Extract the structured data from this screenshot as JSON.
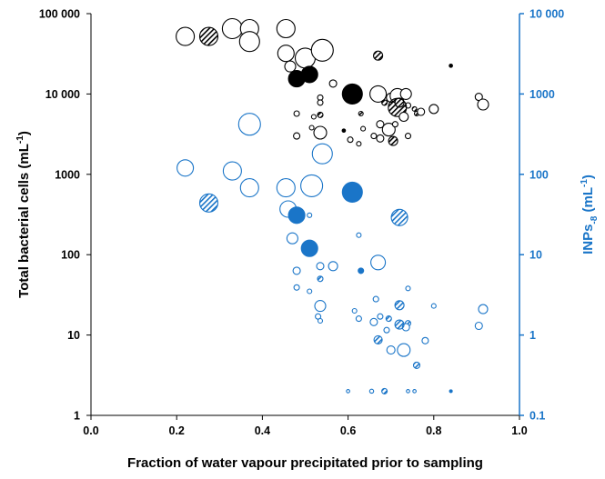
{
  "chart_data": {
    "type": "scatter",
    "title": "",
    "xlabel": "Fraction of water vapour precipitated prior to sampling",
    "ylabel_left": {
      "text": "Total bacterial cells (mL",
      "sup": "-1",
      "end": ")"
    },
    "ylabel_right": {
      "text": "INPs",
      "sub": "-8",
      "mid": " (mL",
      "sup": "-1",
      "end": ")"
    },
    "xlim": [
      0,
      1
    ],
    "ylim_left": [
      1,
      100000
    ],
    "ylim_right": [
      0.1,
      10000
    ],
    "yscale": "log",
    "x_ticks": [
      "0.0",
      "0.2",
      "0.4",
      "0.6",
      "0.8",
      "1.0"
    ],
    "y_left_ticks": [
      "1",
      "10",
      "100",
      "1000",
      "10 000",
      "100 000"
    ],
    "y_right_ticks": [
      "0.1",
      "1",
      "10",
      "100",
      "1000",
      "10 000"
    ],
    "grid": false,
    "legend": "none",
    "colors": {
      "left_series": "#000000",
      "right_series": "#1a75c8",
      "axis_right": "#1a75c8"
    },
    "marker_style_note": "open = outline, filled = solid, hatched = diagonal stripes; marker size varies",
    "series": [
      {
        "axis": "left",
        "color": "#000000",
        "points": [
          {
            "x": 0.22,
            "y": 52000,
            "size": 10,
            "style": "open"
          },
          {
            "x": 0.275,
            "y": 52000,
            "size": 10,
            "style": "hatched"
          },
          {
            "x": 0.33,
            "y": 65000,
            "size": 11,
            "style": "open"
          },
          {
            "x": 0.37,
            "y": 65000,
            "size": 10,
            "style": "open"
          },
          {
            "x": 0.37,
            "y": 45000,
            "size": 11,
            "style": "open"
          },
          {
            "x": 0.455,
            "y": 65000,
            "size": 10,
            "style": "open"
          },
          {
            "x": 0.455,
            "y": 32000,
            "size": 9,
            "style": "open"
          },
          {
            "x": 0.465,
            "y": 22000,
            "size": 6,
            "style": "open"
          },
          {
            "x": 0.5,
            "y": 28000,
            "size": 11,
            "style": "open"
          },
          {
            "x": 0.54,
            "y": 35000,
            "size": 12,
            "style": "open"
          },
          {
            "x": 0.48,
            "y": 15500,
            "size": 9,
            "style": "filled"
          },
          {
            "x": 0.51,
            "y": 17500,
            "size": 9,
            "style": "filled"
          },
          {
            "x": 0.61,
            "y": 10000,
            "size": 11,
            "style": "filled"
          },
          {
            "x": 0.565,
            "y": 13500,
            "size": 4,
            "style": "open"
          },
          {
            "x": 0.67,
            "y": 30000,
            "size": 5,
            "style": "hatched"
          },
          {
            "x": 0.84,
            "y": 22500,
            "size": 1.8,
            "style": "filled"
          },
          {
            "x": 0.535,
            "y": 9000,
            "size": 3,
            "style": "open"
          },
          {
            "x": 0.535,
            "y": 7800,
            "size": 3,
            "style": "open"
          },
          {
            "x": 0.535,
            "y": 5500,
            "size": 3,
            "style": "hatched"
          },
          {
            "x": 0.52,
            "y": 5200,
            "size": 2.5,
            "style": "open"
          },
          {
            "x": 0.48,
            "y": 5700,
            "size": 3,
            "style": "open"
          },
          {
            "x": 0.515,
            "y": 3800,
            "size": 2.5,
            "style": "open"
          },
          {
            "x": 0.535,
            "y": 3300,
            "size": 7,
            "style": "open"
          },
          {
            "x": 0.48,
            "y": 3000,
            "size": 3.5,
            "style": "open"
          },
          {
            "x": 0.59,
            "y": 3500,
            "size": 1.8,
            "style": "filled"
          },
          {
            "x": 0.605,
            "y": 2700,
            "size": 3,
            "style": "open"
          },
          {
            "x": 0.625,
            "y": 2400,
            "size": 2.5,
            "style": "open"
          },
          {
            "x": 0.63,
            "y": 5700,
            "size": 2.5,
            "style": "hatched"
          },
          {
            "x": 0.635,
            "y": 3700,
            "size": 2.5,
            "style": "open"
          },
          {
            "x": 0.67,
            "y": 10000,
            "size": 9,
            "style": "open"
          },
          {
            "x": 0.685,
            "y": 7800,
            "size": 3,
            "style": "hatched"
          },
          {
            "x": 0.7,
            "y": 9000,
            "size": 5,
            "style": "open"
          },
          {
            "x": 0.715,
            "y": 9500,
            "size": 8,
            "style": "open"
          },
          {
            "x": 0.735,
            "y": 10000,
            "size": 6,
            "style": "open"
          },
          {
            "x": 0.72,
            "y": 7800,
            "size": 5,
            "style": "open"
          },
          {
            "x": 0.74,
            "y": 7200,
            "size": 3,
            "style": "open"
          },
          {
            "x": 0.715,
            "y": 6800,
            "size": 10,
            "style": "hatched"
          },
          {
            "x": 0.73,
            "y": 5200,
            "size": 5,
            "style": "open"
          },
          {
            "x": 0.675,
            "y": 4200,
            "size": 4,
            "style": "open"
          },
          {
            "x": 0.695,
            "y": 3600,
            "size": 7,
            "style": "open"
          },
          {
            "x": 0.71,
            "y": 4200,
            "size": 3,
            "style": "open"
          },
          {
            "x": 0.66,
            "y": 3000,
            "size": 3,
            "style": "open"
          },
          {
            "x": 0.675,
            "y": 2800,
            "size": 4,
            "style": "open"
          },
          {
            "x": 0.705,
            "y": 2600,
            "size": 5,
            "style": "hatched"
          },
          {
            "x": 0.74,
            "y": 3000,
            "size": 3,
            "style": "open"
          },
          {
            "x": 0.76,
            "y": 5700,
            "size": 2.5,
            "style": "hatched"
          },
          {
            "x": 0.77,
            "y": 6000,
            "size": 4,
            "style": "open"
          },
          {
            "x": 0.755,
            "y": 6500,
            "size": 2.5,
            "style": "hatched"
          },
          {
            "x": 0.8,
            "y": 6500,
            "size": 5,
            "style": "open"
          },
          {
            "x": 0.905,
            "y": 9200,
            "size": 4,
            "style": "open"
          },
          {
            "x": 0.915,
            "y": 7400,
            "size": 6,
            "style": "open"
          }
        ]
      },
      {
        "axis": "right",
        "color": "#1a75c8",
        "points": [
          {
            "x": 0.22,
            "y": 120,
            "size": 9,
            "style": "open"
          },
          {
            "x": 0.275,
            "y": 44,
            "size": 10,
            "style": "hatched"
          },
          {
            "x": 0.33,
            "y": 110,
            "size": 10,
            "style": "open"
          },
          {
            "x": 0.37,
            "y": 420,
            "size": 12,
            "style": "open"
          },
          {
            "x": 0.37,
            "y": 68,
            "size": 10,
            "style": "open"
          },
          {
            "x": 0.455,
            "y": 68,
            "size": 10,
            "style": "open"
          },
          {
            "x": 0.46,
            "y": 37,
            "size": 9,
            "style": "open"
          },
          {
            "x": 0.515,
            "y": 72,
            "size": 12,
            "style": "open"
          },
          {
            "x": 0.54,
            "y": 180,
            "size": 11,
            "style": "open"
          },
          {
            "x": 0.48,
            "y": 31,
            "size": 9,
            "style": "filled"
          },
          {
            "x": 0.51,
            "y": 12,
            "size": 9,
            "style": "filled"
          },
          {
            "x": 0.61,
            "y": 60,
            "size": 11,
            "style": "filled"
          },
          {
            "x": 0.51,
            "y": 31,
            "size": 2.5,
            "style": "open"
          },
          {
            "x": 0.47,
            "y": 16,
            "size": 6,
            "style": "open"
          },
          {
            "x": 0.535,
            "y": 7.2,
            "size": 4,
            "style": "open"
          },
          {
            "x": 0.565,
            "y": 7.2,
            "size": 5,
            "style": "open"
          },
          {
            "x": 0.535,
            "y": 5.0,
            "size": 3,
            "style": "hatched"
          },
          {
            "x": 0.48,
            "y": 6.3,
            "size": 4,
            "style": "open"
          },
          {
            "x": 0.48,
            "y": 3.9,
            "size": 3,
            "style": "open"
          },
          {
            "x": 0.51,
            "y": 3.5,
            "size": 2.5,
            "style": "open"
          },
          {
            "x": 0.535,
            "y": 2.3,
            "size": 6,
            "style": "open"
          },
          {
            "x": 0.53,
            "y": 1.7,
            "size": 3,
            "style": "open"
          },
          {
            "x": 0.535,
            "y": 1.5,
            "size": 2.5,
            "style": "open"
          },
          {
            "x": 0.625,
            "y": 17.5,
            "size": 2.5,
            "style": "open"
          },
          {
            "x": 0.63,
            "y": 6.3,
            "size": 3,
            "style": "filled"
          },
          {
            "x": 0.67,
            "y": 8.0,
            "size": 8,
            "style": "open"
          },
          {
            "x": 0.72,
            "y": 29,
            "size": 9,
            "style": "hatched"
          },
          {
            "x": 0.615,
            "y": 2.0,
            "size": 2.5,
            "style": "open"
          },
          {
            "x": 0.625,
            "y": 1.6,
            "size": 3,
            "style": "open"
          },
          {
            "x": 0.665,
            "y": 2.8,
            "size": 3,
            "style": "open"
          },
          {
            "x": 0.675,
            "y": 1.7,
            "size": 3,
            "style": "open"
          },
          {
            "x": 0.66,
            "y": 1.45,
            "size": 4,
            "style": "open"
          },
          {
            "x": 0.67,
            "y": 0.87,
            "size": 4.5,
            "style": "hatched"
          },
          {
            "x": 0.695,
            "y": 1.6,
            "size": 3,
            "style": "hatched"
          },
          {
            "x": 0.69,
            "y": 1.15,
            "size": 3,
            "style": "open"
          },
          {
            "x": 0.7,
            "y": 0.65,
            "size": 4.5,
            "style": "open"
          },
          {
            "x": 0.72,
            "y": 2.35,
            "size": 5,
            "style": "hatched"
          },
          {
            "x": 0.74,
            "y": 3.8,
            "size": 2.5,
            "style": "open"
          },
          {
            "x": 0.74,
            "y": 1.4,
            "size": 3,
            "style": "hatched"
          },
          {
            "x": 0.735,
            "y": 1.25,
            "size": 4,
            "style": "open"
          },
          {
            "x": 0.72,
            "y": 1.35,
            "size": 5,
            "style": "hatched"
          },
          {
            "x": 0.73,
            "y": 0.65,
            "size": 7,
            "style": "open"
          },
          {
            "x": 0.76,
            "y": 0.42,
            "size": 3.5,
            "style": "hatched"
          },
          {
            "x": 0.78,
            "y": 0.85,
            "size": 3.5,
            "style": "open"
          },
          {
            "x": 0.8,
            "y": 2.3,
            "size": 2.5,
            "style": "open"
          },
          {
            "x": 0.905,
            "y": 1.3,
            "size": 4,
            "style": "open"
          },
          {
            "x": 0.915,
            "y": 2.1,
            "size": 5,
            "style": "open"
          },
          {
            "x": 0.6,
            "y": 0.2,
            "size": 1.8,
            "style": "open"
          },
          {
            "x": 0.655,
            "y": 0.2,
            "size": 2.2,
            "style": "open"
          },
          {
            "x": 0.685,
            "y": 0.2,
            "size": 3,
            "style": "hatched"
          },
          {
            "x": 0.74,
            "y": 0.2,
            "size": 1.8,
            "style": "open"
          },
          {
            "x": 0.755,
            "y": 0.2,
            "size": 1.8,
            "style": "open"
          },
          {
            "x": 0.84,
            "y": 0.2,
            "size": 1.5,
            "style": "filled"
          }
        ]
      }
    ]
  }
}
